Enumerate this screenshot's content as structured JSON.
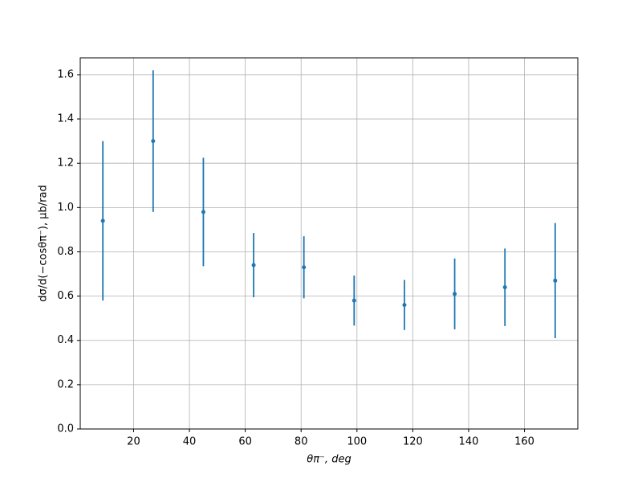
{
  "chart_data": {
    "type": "errorbar",
    "x_label": "θπ⁻, deg",
    "y_label": "dσ/d(−cosθπ⁻), μb/rad",
    "x": [
      9,
      27,
      45,
      63,
      81,
      99,
      117,
      135,
      153,
      171
    ],
    "series": [
      {
        "color": "#1f77b4",
        "values": [
          0.94,
          1.3,
          0.98,
          0.74,
          0.73,
          0.58,
          0.56,
          0.61,
          0.64,
          0.67
        ],
        "errors": [
          0.36,
          0.32,
          0.245,
          0.145,
          0.14,
          0.113,
          0.113,
          0.16,
          0.175,
          0.26
        ]
      }
    ],
    "xlim": [
      0.9,
      179.1
    ],
    "ylim": [
      0,
      1.676
    ],
    "xticks": [
      20,
      40,
      60,
      80,
      100,
      120,
      140,
      160
    ],
    "yticks": [
      {
        "value": 0,
        "label": "0.0"
      },
      {
        "value": 0.2,
        "label": "0.2"
      },
      {
        "value": 0.4,
        "label": "0.4"
      },
      {
        "value": 0.6,
        "label": "0.6"
      },
      {
        "value": 0.8,
        "label": "0.8"
      },
      {
        "value": 1.0,
        "label": "1.0"
      },
      {
        "value": 1.2,
        "label": "1.2"
      },
      {
        "value": 1.4,
        "label": "1.4"
      },
      {
        "value": 1.6,
        "label": "1.6"
      }
    ],
    "grid": true
  }
}
